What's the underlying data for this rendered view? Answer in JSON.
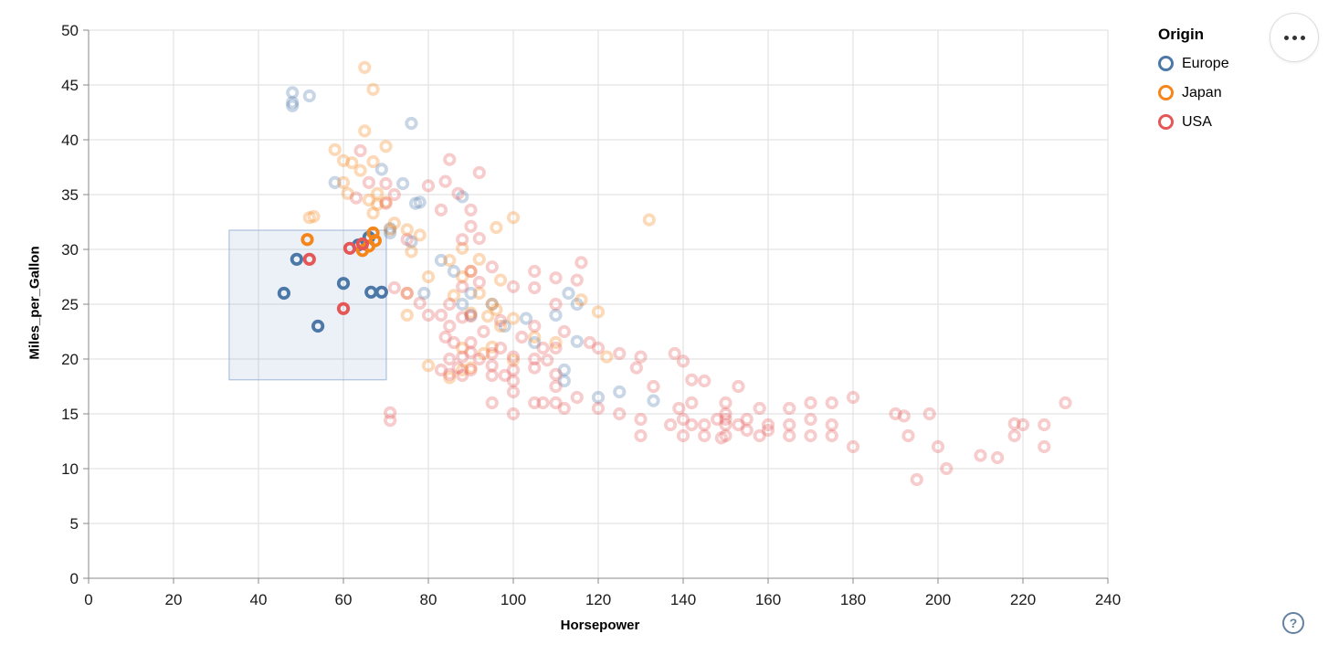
{
  "controls": {
    "menu_button": "options-menu",
    "help_label": "?"
  },
  "legend": {
    "title": "Origin",
    "items": [
      {
        "label": "Europe",
        "color": "#4c78a8"
      },
      {
        "label": "Japan",
        "color": "#f58518"
      },
      {
        "label": "USA",
        "color": "#e45756"
      }
    ]
  },
  "colors": {
    "europe": "#4c78a8",
    "japan": "#f58518",
    "usa": "#e45756",
    "grid": "#ddd",
    "axis": "#888",
    "tick_label": "#1a1a1a",
    "brush_fill": "rgba(96,134,190,0.12)",
    "brush_stroke": "rgba(143,170,214,0.85)"
  },
  "chart_data": {
    "type": "scatter",
    "title": "",
    "xlabel": "Horsepower",
    "ylabel": "Miles_per_Gallon",
    "xlim": [
      0,
      240
    ],
    "ylim": [
      0,
      50
    ],
    "x_ticks": [
      0,
      20,
      40,
      60,
      80,
      100,
      120,
      140,
      160,
      180,
      200,
      220,
      240
    ],
    "y_ticks": [
      0,
      5,
      10,
      15,
      20,
      25,
      30,
      35,
      40,
      45,
      50
    ],
    "grid": true,
    "legend_position": "top-right",
    "point_opacity_unselected": 0.3,
    "brush": {
      "x": [
        33.1,
        70.1
      ],
      "y": [
        18.1,
        31.75
      ]
    },
    "series": [
      {
        "name": "Europe",
        "color": "#4c78a8",
        "selected": [
          [
            46,
            26.0
          ],
          [
            49,
            29.1
          ],
          [
            54,
            23.0
          ],
          [
            60,
            26.9
          ],
          [
            66.5,
            26.1
          ],
          [
            69,
            26.1
          ],
          [
            63.5,
            30.4
          ],
          [
            66,
            31.1
          ]
        ],
        "unselected": [
          [
            48,
            44.3
          ],
          [
            48,
            43.4
          ],
          [
            48,
            43.1
          ],
          [
            52,
            44.0
          ],
          [
            76,
            41.5
          ],
          [
            58,
            36.1
          ],
          [
            69,
            37.3
          ],
          [
            74,
            36.0
          ],
          [
            77,
            34.2
          ],
          [
            78,
            34.3
          ],
          [
            88,
            34.8
          ],
          [
            71,
            31.9
          ],
          [
            71,
            31.5
          ],
          [
            83,
            29.0
          ],
          [
            76,
            30.7
          ],
          [
            86,
            28.0
          ],
          [
            79,
            26.0
          ],
          [
            90,
            26.0
          ],
          [
            90,
            24.0
          ],
          [
            88,
            25.0
          ],
          [
            95,
            25.0
          ],
          [
            110,
            24.0
          ],
          [
            113,
            26.0
          ],
          [
            115,
            25.0
          ],
          [
            103,
            23.7
          ],
          [
            105,
            21.5
          ],
          [
            115,
            21.6
          ],
          [
            98,
            23.0
          ],
          [
            112,
            18.0
          ],
          [
            112,
            19.0
          ],
          [
            120,
            16.5
          ],
          [
            125,
            17.0
          ],
          [
            133,
            16.2
          ]
        ]
      },
      {
        "name": "Japan",
        "color": "#f58518",
        "selected": [
          [
            51.5,
            30.9
          ],
          [
            64.5,
            29.9
          ],
          [
            66,
            30.3
          ],
          [
            67,
            31.5
          ],
          [
            67.5,
            30.8
          ]
        ],
        "unselected": [
          [
            65,
            46.6
          ],
          [
            67,
            44.6
          ],
          [
            65,
            40.8
          ],
          [
            70,
            39.4
          ],
          [
            58,
            39.1
          ],
          [
            60,
            38.1
          ],
          [
            62,
            37.9
          ],
          [
            64,
            37.2
          ],
          [
            67,
            38.0
          ],
          [
            60,
            36.1
          ],
          [
            66,
            34.5
          ],
          [
            68,
            34.1
          ],
          [
            70,
            34.3
          ],
          [
            67,
            33.3
          ],
          [
            52,
            32.9
          ],
          [
            53,
            33.0
          ],
          [
            61,
            35.1
          ],
          [
            68,
            35.1
          ],
          [
            71,
            31.8
          ],
          [
            75,
            31.8
          ],
          [
            72,
            32.4
          ],
          [
            76,
            29.8
          ],
          [
            78,
            31.3
          ],
          [
            96,
            32.0
          ],
          [
            100,
            32.9
          ],
          [
            132,
            32.7
          ],
          [
            88,
            30.1
          ],
          [
            92,
            29.1
          ],
          [
            90,
            28.0
          ],
          [
            85,
            29.0
          ],
          [
            97,
            27.2
          ],
          [
            95,
            25.0
          ],
          [
            88,
            27.5
          ],
          [
            92,
            26.0
          ],
          [
            96,
            24.5
          ],
          [
            90,
            24.2
          ],
          [
            86,
            25.8
          ],
          [
            94,
            23.9
          ],
          [
            100,
            23.7
          ],
          [
            110,
            21.5
          ],
          [
            97,
            23.0
          ],
          [
            88,
            21.0
          ],
          [
            93,
            20.5
          ],
          [
            95,
            21.1
          ],
          [
            100,
            19.9
          ],
          [
            105,
            22.0
          ],
          [
            116,
            25.4
          ],
          [
            120,
            24.3
          ],
          [
            122,
            20.2
          ],
          [
            90,
            19.2
          ],
          [
            88,
            19.0
          ],
          [
            85,
            18.3
          ],
          [
            80,
            19.4
          ],
          [
            75,
            24.0
          ],
          [
            80,
            27.5
          ],
          [
            75,
            26.0
          ]
        ]
      },
      {
        "name": "USA",
        "color": "#e45756",
        "selected": [
          [
            52,
            29.1
          ],
          [
            60,
            24.6
          ],
          [
            61.5,
            30.1
          ],
          [
            64.5,
            30.5
          ]
        ],
        "unselected": [
          [
            64,
            39.0
          ],
          [
            63,
            34.7
          ],
          [
            66,
            36.1
          ],
          [
            70,
            34.2
          ],
          [
            70,
            36.0
          ],
          [
            75,
            30.9
          ],
          [
            72,
            35.0
          ],
          [
            85,
            38.2
          ],
          [
            84,
            36.2
          ],
          [
            80,
            35.8
          ],
          [
            87,
            35.1
          ],
          [
            90,
            33.6
          ],
          [
            83,
            33.6
          ],
          [
            92,
            37.0
          ],
          [
            88,
            30.9
          ],
          [
            92,
            31.0
          ],
          [
            90,
            32.1
          ],
          [
            72,
            26.5
          ],
          [
            75,
            26.0
          ],
          [
            78,
            25.1
          ],
          [
            80,
            24.0
          ],
          [
            83,
            24.0
          ],
          [
            85,
            23.0
          ],
          [
            88,
            23.8
          ],
          [
            90,
            23.9
          ],
          [
            84,
            22.0
          ],
          [
            86,
            21.5
          ],
          [
            88,
            20.2
          ],
          [
            90,
            20.6
          ],
          [
            92,
            20.0
          ],
          [
            95,
            20.5
          ],
          [
            97,
            21.0
          ],
          [
            100,
            20.2
          ],
          [
            85,
            20.0
          ],
          [
            87,
            19.2
          ],
          [
            90,
            19.0
          ],
          [
            88,
            18.5
          ],
          [
            85,
            18.6
          ],
          [
            83,
            19.0
          ],
          [
            95,
            18.5
          ],
          [
            100,
            19.0
          ],
          [
            105,
            19.2
          ],
          [
            105,
            20.0
          ],
          [
            108,
            19.9
          ],
          [
            110,
            18.6
          ],
          [
            100,
            18.0
          ],
          [
            98,
            18.5
          ],
          [
            95,
            19.4
          ],
          [
            90,
            21.5
          ],
          [
            93,
            22.5
          ],
          [
            97,
            23.5
          ],
          [
            102,
            22.0
          ],
          [
            105,
            23.0
          ],
          [
            110,
            21.0
          ],
          [
            107,
            21.0
          ],
          [
            85,
            25.0
          ],
          [
            88,
            26.6
          ],
          [
            90,
            28.0
          ],
          [
            92,
            27.0
          ],
          [
            95,
            28.4
          ],
          [
            100,
            26.6
          ],
          [
            105,
            26.5
          ],
          [
            105,
            28.0
          ],
          [
            110,
            27.4
          ],
          [
            116,
            28.8
          ],
          [
            115,
            27.2
          ],
          [
            110,
            25.0
          ],
          [
            112,
            22.5
          ],
          [
            118,
            21.5
          ],
          [
            120,
            21.0
          ],
          [
            125,
            20.5
          ],
          [
            130,
            20.2
          ],
          [
            129,
            19.2
          ],
          [
            138,
            20.5
          ],
          [
            140,
            19.8
          ],
          [
            133,
            17.5
          ],
          [
            142,
            18.1
          ],
          [
            145,
            18.0
          ],
          [
            71,
            15.1
          ],
          [
            71,
            14.4
          ],
          [
            95,
            16.0
          ],
          [
            100,
            15.0
          ],
          [
            100,
            17.0
          ],
          [
            105,
            16.0
          ],
          [
            107,
            16.0
          ],
          [
            110,
            16.0
          ],
          [
            110,
            17.5
          ],
          [
            112,
            15.5
          ],
          [
            115,
            16.5
          ],
          [
            120,
            15.5
          ],
          [
            125,
            15.0
          ],
          [
            130,
            14.5
          ],
          [
            130,
            13.0
          ],
          [
            137,
            14.0
          ],
          [
            140,
            13.0
          ],
          [
            140,
            14.5
          ],
          [
            142,
            14.0
          ],
          [
            145,
            14.0
          ],
          [
            145,
            13.0
          ],
          [
            148,
            14.5
          ],
          [
            149,
            12.8
          ],
          [
            150,
            14.0
          ],
          [
            150,
            13.0
          ],
          [
            150,
            14.5
          ],
          [
            150,
            15.0
          ],
          [
            150,
            16.0
          ],
          [
            153,
            14.0
          ],
          [
            153,
            17.5
          ],
          [
            155,
            13.5
          ],
          [
            155,
            14.5
          ],
          [
            158,
            13.0
          ],
          [
            158,
            15.5
          ],
          [
            160,
            13.5
          ],
          [
            160,
            14.0
          ],
          [
            165,
            14.0
          ],
          [
            165,
            13.0
          ],
          [
            165,
            15.5
          ],
          [
            170,
            13.0
          ],
          [
            170,
            14.5
          ],
          [
            170,
            16.0
          ],
          [
            175,
            14.0
          ],
          [
            175,
            13.0
          ],
          [
            175,
            16.0
          ],
          [
            180,
            12.0
          ],
          [
            180,
            16.5
          ],
          [
            190,
            15.0
          ],
          [
            192,
            14.8
          ],
          [
            193,
            13.0
          ],
          [
            198,
            15.0
          ],
          [
            200,
            12.0
          ],
          [
            202,
            10.0
          ],
          [
            195,
            9.0
          ],
          [
            210,
            11.2
          ],
          [
            214,
            11.0
          ],
          [
            218,
            14.1
          ],
          [
            218,
            13.0
          ],
          [
            220,
            14.0
          ],
          [
            225,
            14.0
          ],
          [
            225,
            12.0
          ],
          [
            230,
            16.0
          ],
          [
            142,
            16.0
          ],
          [
            139,
            15.5
          ]
        ]
      }
    ]
  }
}
